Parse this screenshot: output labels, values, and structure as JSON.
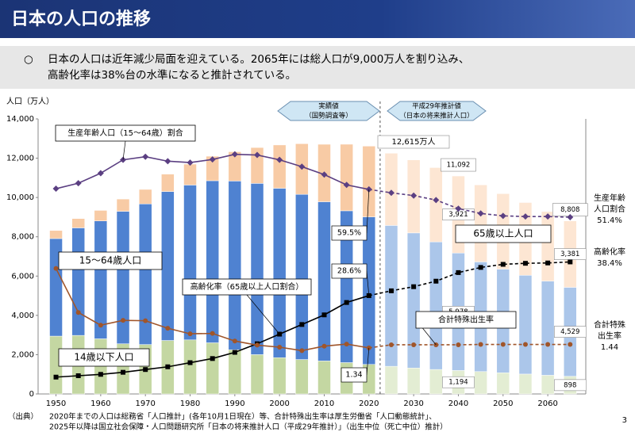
{
  "header": {
    "title": "日本の人口の推移"
  },
  "summary": {
    "bullet": "○",
    "lines": [
      "日本の人口は近年減少局面を迎えている。2065年には総人口が9,000万人を割り込み、",
      "高齢化率は38%台の水準になると推計されている。"
    ]
  },
  "chart_data": {
    "type": "bar",
    "stacked": true,
    "y_label": "人口（万人）",
    "x": [
      1950,
      1955,
      1960,
      1965,
      1970,
      1975,
      1980,
      1985,
      1990,
      1995,
      2000,
      2005,
      2010,
      2015,
      2020,
      2025,
      2030,
      2035,
      2040,
      2045,
      2050,
      2055,
      2060,
      2065
    ],
    "xlim": [
      1946,
      2068.5
    ],
    "xticks": [
      1950,
      1960,
      1970,
      1980,
      1990,
      2000,
      2010,
      2020,
      2030,
      2040,
      2050,
      2060
    ],
    "ylim": [
      0,
      14000
    ],
    "yticks": [
      0,
      {
        "value": 2000,
        "label": "2,000"
      },
      {
        "value": 4000,
        "label": "4,000"
      },
      {
        "value": 6000,
        "label": "6,000"
      },
      {
        "value": 8000,
        "label": "8,000"
      },
      {
        "value": 10000,
        "label": "10,000"
      },
      {
        "value": 12000,
        "label": "12,000"
      },
      {
        "value": 14000,
        "label": "14,000"
      }
    ],
    "y2lim": [
      0,
      80
    ],
    "y3lim": [
      0,
      8
    ],
    "projection_start": 2025,
    "periods": [
      {
        "label": [
          "実績値",
          "（国勢調査等）"
        ]
      },
      {
        "label": [
          "平成29年推計値",
          "（日本の将来推計人口）"
        ]
      }
    ],
    "series": [
      {
        "name": "14歳以下人口",
        "type": "bar",
        "color": "#c4d7a2",
        "light_color": "#e3edd3",
        "values": [
          2943,
          2980,
          2807,
          2553,
          2515,
          2722,
          2751,
          2603,
          2249,
          2001,
          1847,
          1752,
          1680,
          1595,
          1503,
          1407,
          1321,
          1246,
          1194,
          1138,
          1077,
          1012,
          951,
          898
        ],
        "value_labels": [
          null,
          null,
          null,
          null,
          null,
          null,
          null,
          null,
          null,
          null,
          null,
          null,
          null,
          null,
          null,
          null,
          null,
          null,
          "1,194",
          null,
          null,
          null,
          null,
          "898"
        ]
      },
      {
        "name": "15～64歳人口",
        "type": "bar",
        "color": "#4f82d1",
        "light_color": "#abc6ea",
        "values": [
          4966,
          5473,
          6000,
          6744,
          7157,
          7581,
          7883,
          8251,
          8590,
          8716,
          8622,
          8409,
          8103,
          7728,
          7509,
          7170,
          6875,
          6494,
          5978,
          5584,
          5275,
          5028,
          4793,
          4529
        ],
        "value_labels": [
          null,
          null,
          null,
          null,
          null,
          null,
          null,
          null,
          null,
          null,
          null,
          null,
          null,
          null,
          null,
          null,
          null,
          null,
          "5,978",
          null,
          null,
          null,
          null,
          "4,529"
        ]
      },
      {
        "name": "65歳以上人口",
        "type": "bar",
        "color": "#f8cba5",
        "light_color": "#fde6d3",
        "values": [
          411,
          475,
          535,
          624,
          739,
          887,
          1065,
          1247,
          1489,
          1826,
          2204,
          2576,
          2925,
          3387,
          3603,
          3677,
          3716,
          3782,
          3921,
          3919,
          3841,
          3704,
          3540,
          3381
        ],
        "value_labels": [
          null,
          null,
          null,
          null,
          null,
          null,
          null,
          null,
          null,
          null,
          null,
          null,
          null,
          null,
          null,
          null,
          null,
          null,
          "3,921",
          null,
          null,
          null,
          null,
          "3,381"
        ]
      },
      {
        "name": "生産年齢人口（15～64歳）割合",
        "type": "line",
        "axis": "y2",
        "marker": "diamond",
        "color": "#5b3f82",
        "side_label": [
          "生産年齢",
          "人口割合"
        ],
        "values": [
          59.7,
          61.3,
          64.2,
          68.1,
          69.0,
          67.7,
          67.3,
          68.2,
          69.7,
          69.5,
          68.1,
          66.1,
          63.8,
          60.8,
          59.5,
          58.5,
          57.7,
          56.4,
          53.9,
          52.5,
          51.8,
          51.6,
          51.6,
          51.4
        ],
        "value_labels": [
          null,
          null,
          null,
          null,
          null,
          null,
          null,
          null,
          null,
          null,
          null,
          null,
          null,
          null,
          "59.5%",
          null,
          null,
          null,
          null,
          null,
          null,
          null,
          null,
          "51.4%"
        ]
      },
      {
        "name": "高齢化率（65歳以上人口割合）",
        "type": "line",
        "axis": "y2",
        "marker": "square",
        "color": "#000000",
        "side_label": [
          "高齢化率"
        ],
        "values": [
          4.9,
          5.3,
          5.7,
          6.3,
          7.1,
          7.9,
          9.1,
          10.3,
          12.1,
          14.6,
          17.4,
          20.2,
          23.0,
          26.6,
          28.6,
          30.0,
          31.2,
          32.8,
          35.3,
          36.8,
          37.7,
          38.0,
          38.1,
          38.4
        ],
        "value_labels": [
          null,
          null,
          null,
          null,
          null,
          null,
          null,
          null,
          null,
          null,
          null,
          null,
          null,
          null,
          "28.6%",
          null,
          null,
          null,
          null,
          null,
          null,
          null,
          null,
          "38.4%"
        ]
      },
      {
        "name": "合計特殊出生率",
        "type": "line",
        "axis": "y3",
        "marker": "circle",
        "color": "#a0552a",
        "side_label": [
          "合計特殊",
          "出生率"
        ],
        "values": [
          3.65,
          2.37,
          2.0,
          2.14,
          2.13,
          1.91,
          1.75,
          1.76,
          1.54,
          1.42,
          1.36,
          1.26,
          1.39,
          1.45,
          1.34,
          1.43,
          1.43,
          1.43,
          1.43,
          1.44,
          1.44,
          1.44,
          1.44,
          1.44
        ],
        "value_labels": [
          null,
          null,
          null,
          null,
          null,
          null,
          null,
          null,
          null,
          null,
          null,
          null,
          null,
          null,
          "1.34",
          null,
          null,
          null,
          null,
          null,
          null,
          null,
          null,
          "1.44"
        ]
      }
    ],
    "total_labels": [
      null,
      null,
      null,
      null,
      null,
      null,
      null,
      null,
      null,
      null,
      null,
      null,
      null,
      null,
      "12,615万人",
      null,
      null,
      null,
      "11,092",
      null,
      null,
      null,
      null,
      "8,808"
    ]
  },
  "footer": {
    "source_label": "（出典）",
    "lines": [
      "2020年までの人口は総務省「人口推計」(各年10月1日現在）等、合計特殊出生率は厚生労働省「人口動態統計」、",
      "2025年以降は国立社会保障・人口問題研究所「日本の将来推計人口（平成29年推計）」（出生中位（死亡中位）推計）"
    ],
    "page": "3"
  }
}
